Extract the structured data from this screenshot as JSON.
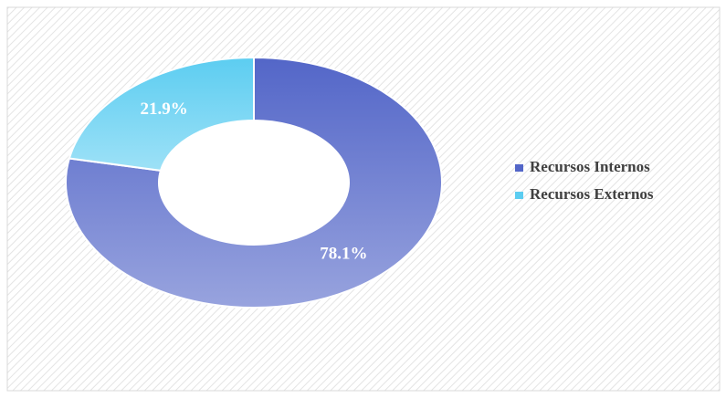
{
  "chart_data": {
    "type": "donut",
    "categories": [
      "Recursos Internos",
      "Recursos Externos"
    ],
    "values": [
      78.1,
      21.9
    ],
    "value_labels": [
      "78.1%",
      "21.9%"
    ],
    "colors": [
      "#5366c8",
      "#5ccdf1"
    ],
    "legend": "right"
  }
}
